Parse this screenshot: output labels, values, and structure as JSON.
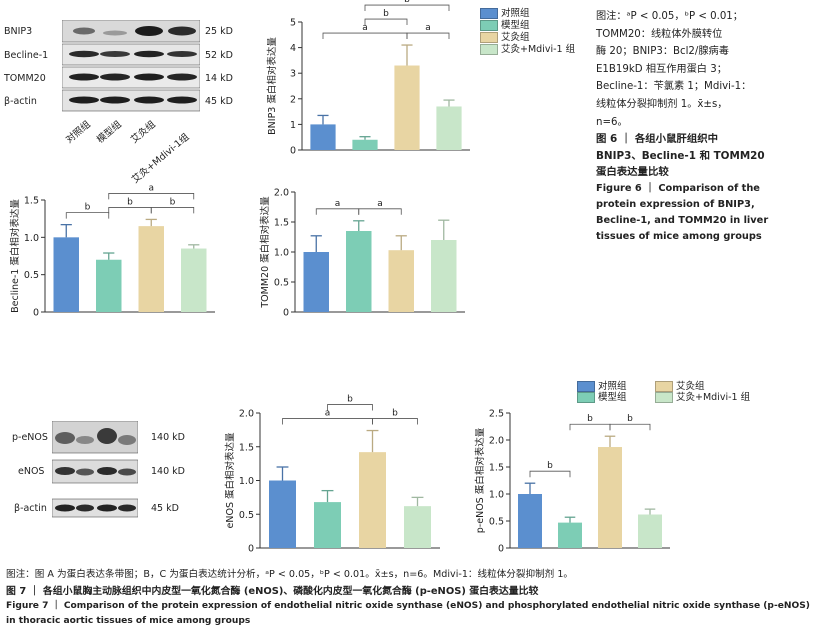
{
  "fig6": {
    "blot": {
      "rows": [
        {
          "label": "BNIP3",
          "kd": "25 kD"
        },
        {
          "label": "Becline-1",
          "kd": "52 kD"
        },
        {
          "label": "TOMM20",
          "kd": "14 kD"
        },
        {
          "label": "β-actin",
          "kd": "45 kD"
        }
      ],
      "lanes": [
        "对照组",
        "模型组",
        "艾灸组",
        "艾灸+Mdivi-1组"
      ]
    },
    "note": {
      "line1": "图注：ᵃP < 0.05，ᵇP < 0.01；",
      "line2": "TOMM20：线粒体外膜转位",
      "line3": "酶 20；BNIP3：Bcl2/腺病毒",
      "line4": "E1B19kD 相互作用蛋白 3；",
      "line5": "Becline-1：苄氯素 1；Mdivi-1：",
      "line6": "线粒体分裂抑制剂 1。x̄±s，",
      "line7": "n=6。"
    },
    "caption_zh": {
      "line1": "图 6 ｜ 各组小鼠肝组织中",
      "line2": "BNIP3、Becline-1 和 TOMM20",
      "line3": "蛋白表达量比较"
    },
    "caption_en": {
      "line1": "Figure 6 ｜ Comparison of the",
      "line2": "protein expression of BNIP3,",
      "line3": "Becline-1, and TOMM20 in liver",
      "line4": "tissues of mice among groups"
    },
    "legend": [
      "对照组",
      "模型组",
      "艾灸组",
      "艾灸+Mdivi-1 组"
    ]
  },
  "fig7": {
    "blot": {
      "rows": [
        {
          "label": "p-eNOS",
          "kd": "140 kD"
        },
        {
          "label": "eNOS",
          "kd": "140 kD"
        },
        {
          "label": "β-actin",
          "kd": "45 kD"
        }
      ]
    },
    "legend": [
      "对照组",
      "模型组",
      "艾灸组",
      "艾灸+Mdivi-1 组"
    ],
    "note": "图注：图 A 为蛋白表达条带图；B，C 为蛋白表达统计分析，ᵃP < 0.05，ᵇP < 0.01。x̄±s，n=6。Mdivi-1：线粒体分裂抑制剂 1。",
    "caption_zh": "图 7 ｜ 各组小鼠胸主动脉组织中内皮型一氧化氮合酶 (eNOS)、磷酸化内皮型一氧化氮合酶 (p-eNOS) 蛋白表达量比较",
    "caption_en": {
      "line1": "Figure 7 ｜ Comparison of the protein expression of endothelial nitric oxide synthase (eNOS) and phosphorylated endothelial nitric oxide synthase (p-eNOS)",
      "line2": "in thoracic aortic tissues of mice among groups"
    }
  },
  "colors": [
    "#5b8fcf",
    "#7dcdb5",
    "#e8d5a3",
    "#c8e6c9"
  ],
  "chart_data": [
    {
      "id": "bnip3",
      "type": "bar",
      "ylabel": "BNIP3 蛋白相对表达量",
      "ylim": [
        0,
        5
      ],
      "yticks": [
        "0",
        "1",
        "2",
        "3",
        "4",
        "5"
      ],
      "values": [
        1.0,
        0.4,
        3.3,
        1.7
      ],
      "errors": [
        0.35,
        0.12,
        0.8,
        0.25
      ],
      "sig": [
        {
          "from": 0,
          "to": 2,
          "label": "a"
        },
        {
          "from": 1,
          "to": 2,
          "label": "b"
        },
        {
          "from": 2,
          "to": 3,
          "label": "a"
        },
        {
          "from": 1,
          "to": 3,
          "label": "b"
        }
      ]
    },
    {
      "id": "becline",
      "type": "bar",
      "ylabel": "Becline-1 蛋白相对表达量",
      "ylim": [
        0,
        1.5
      ],
      "yticks": [
        "0",
        "0.5",
        "1.0",
        "1.5"
      ],
      "values": [
        1.0,
        0.7,
        1.15,
        0.85
      ],
      "errors": [
        0.17,
        0.09,
        0.09,
        0.05
      ],
      "sig": [
        {
          "from": 0,
          "to": 1,
          "label": "b"
        },
        {
          "from": 1,
          "to": 2,
          "label": "b"
        },
        {
          "from": 2,
          "to": 3,
          "label": "b"
        },
        {
          "from": 1,
          "to": 3,
          "label": "a"
        }
      ]
    },
    {
      "id": "tomm20",
      "type": "bar",
      "ylabel": "TOMM20 蛋白相对表达量",
      "ylim": [
        0,
        2.0
      ],
      "yticks": [
        "0",
        "0.5",
        "1.0",
        "1.5",
        "2.0"
      ],
      "values": [
        1.0,
        1.35,
        1.03,
        1.2
      ],
      "errors": [
        0.27,
        0.17,
        0.24,
        0.33
      ],
      "sig": [
        {
          "from": 0,
          "to": 1,
          "label": "a"
        },
        {
          "from": 1,
          "to": 2,
          "label": "a"
        }
      ]
    },
    {
      "id": "enos",
      "type": "bar",
      "ylabel": "eNOS 蛋白相对表达量",
      "ylim": [
        0,
        2.0
      ],
      "yticks": [
        "0",
        "0.5",
        "1.0",
        "1.5",
        "2.0"
      ],
      "values": [
        1.0,
        0.68,
        1.42,
        0.62
      ],
      "errors": [
        0.2,
        0.17,
        0.32,
        0.13
      ],
      "sig": [
        {
          "from": 0,
          "to": 2,
          "label": "a"
        },
        {
          "from": 1,
          "to": 2,
          "label": "b"
        },
        {
          "from": 2,
          "to": 3,
          "label": "b"
        }
      ]
    },
    {
      "id": "penos",
      "type": "bar",
      "ylabel": "p-eNOS 蛋白相对表达量",
      "ylim": [
        0,
        2.5
      ],
      "yticks": [
        "0",
        "0.5",
        "1.0",
        "1.5",
        "2.0",
        "2.5"
      ],
      "values": [
        1.0,
        0.47,
        1.87,
        0.62
      ],
      "errors": [
        0.2,
        0.1,
        0.2,
        0.1
      ],
      "sig": [
        {
          "from": 0,
          "to": 1,
          "label": "b"
        },
        {
          "from": 1,
          "to": 2,
          "label": "b"
        },
        {
          "from": 2,
          "to": 3,
          "label": "b"
        }
      ]
    }
  ]
}
